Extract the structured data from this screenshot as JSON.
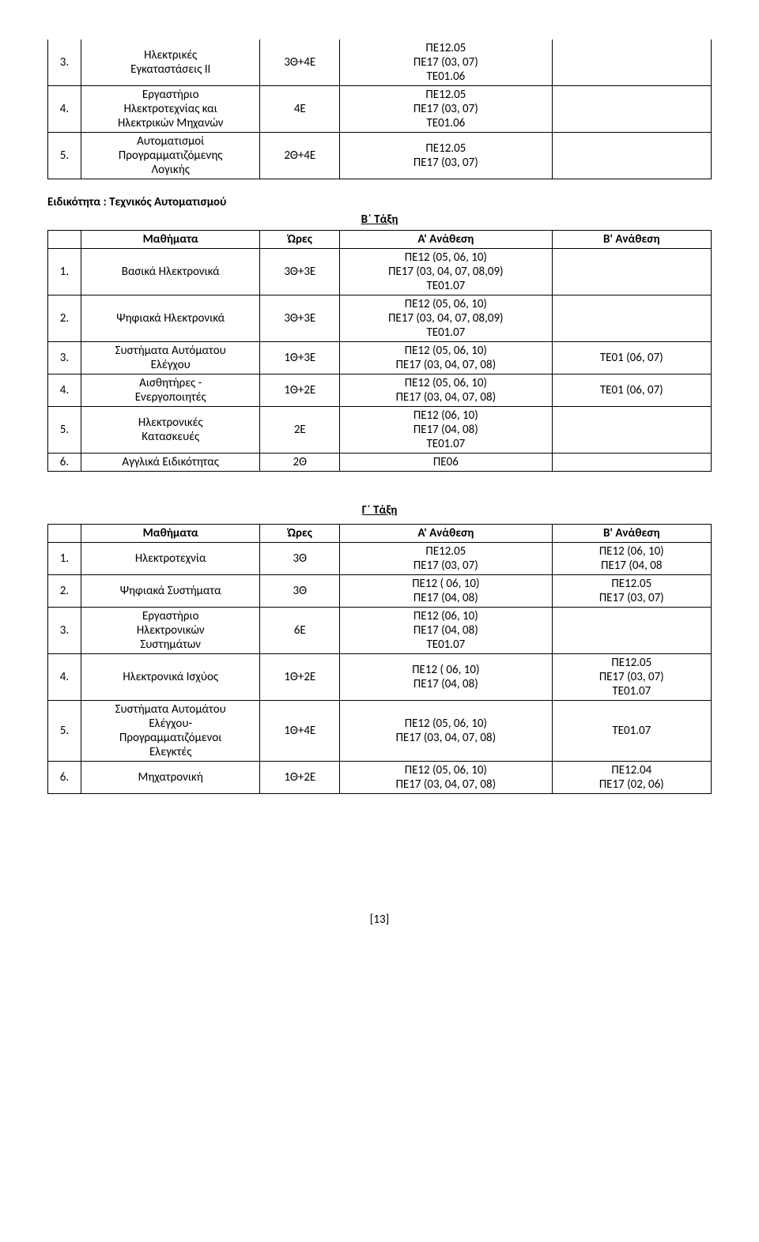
{
  "top_table": {
    "rows": [
      {
        "num": "3.",
        "name_l1": "Ηλεκτρικές",
        "name_l2": "Εγκαταστάσεις ΙΙ",
        "hours": "3Θ+4Ε",
        "a_l1": "ΠΕ12.05",
        "a_l2": "ΠΕ17 (03, 07)",
        "a_l3": "ΤΕ01.06",
        "b": ""
      },
      {
        "num": "4.",
        "name_l1": "Εργαστήριο",
        "name_l2": "Ηλεκτροτεχνίας και",
        "name_l3": "Ηλεκτρικών Μηχανών",
        "hours": "4Ε",
        "a_l1": "ΠΕ12.05",
        "a_l2": "ΠΕ17 (03, 07)",
        "a_l3": "ΤΕ01.06",
        "b": ""
      },
      {
        "num": "5.",
        "name_l1": "Αυτοματισμοί",
        "name_l2": "Προγραμματιζόμενης",
        "name_l3": "Λογικής",
        "hours": "2Θ+4Ε",
        "a_l1": "ΠΕ12.05",
        "a_l2": "ΠΕ17 (03, 07)",
        "b": ""
      }
    ]
  },
  "spec_title": "Ειδικότητα : Τεχνικός Αυτοματισμού",
  "class_b": "Β΄ Τάξη",
  "headers": {
    "math": "Μαθήματα",
    "hours": "Ώρες",
    "a": "Α' Ανάθεση",
    "b": "Β' Ανάθεση"
  },
  "table_b": {
    "rows": [
      {
        "num": "1.",
        "name": "Βασικά Ηλεκτρονικά",
        "hours": "3Θ+3Ε",
        "a_l1": "ΠΕ12 (05, 06, 10)",
        "a_l2": "ΠΕ17 (03, 04, 07, 08,09)",
        "a_l3": "ΤΕ01.07",
        "b": ""
      },
      {
        "num": "2.",
        "name": "Ψηφιακά Ηλεκτρονικά",
        "hours": "3Θ+3Ε",
        "a_l1": "ΠΕ12 (05, 06, 10)",
        "a_l2": "ΠΕ17 (03, 04, 07, 08,09)",
        "a_l3": "ΤΕ01.07",
        "b": ""
      },
      {
        "num": "3.",
        "name_l1": "Συστήματα Αυτόματου",
        "name_l2": "Ελέγχου",
        "hours": "1Θ+3Ε",
        "a_l1": "ΠΕ12 (05, 06, 10)",
        "a_l2": "ΠΕ17 (03, 04, 07, 08)",
        "b": "ΤΕ01 (06, 07)"
      },
      {
        "num": "4.",
        "name_l1": "Αισθητήρες -",
        "name_l2": "Ενεργοποιητές",
        "hours": "1Θ+2Ε",
        "a_l1": "ΠΕ12 (05, 06, 10)",
        "a_l2": "ΠΕ17 (03, 04, 07, 08)",
        "b": "ΤΕ01 (06, 07)"
      },
      {
        "num": "5.",
        "name_l1": "Ηλεκτρονικές",
        "name_l2": "Κατασκευές",
        "hours": "2Ε",
        "a_l1": "ΠΕ12 (06, 10)",
        "a_l2": "ΠΕ17 (04, 08)",
        "a_l3": "ΤΕ01.07",
        "b": ""
      },
      {
        "num": "6.",
        "name": "Αγγλικά Ειδικότητας",
        "hours": "2Θ",
        "a": "ΠΕ06",
        "b": ""
      }
    ]
  },
  "class_g": "Γ΄ Τάξη",
  "table_g": {
    "rows": [
      {
        "num": "1.",
        "name": "Ηλεκτροτεχνία",
        "hours": "3Θ",
        "a_l1": "ΠΕ12.05",
        "a_l2": "ΠΕ17 (03, 07)",
        "b_l1": "ΠΕ12 (06, 10)",
        "b_l2": "ΠΕ17 (04, 08"
      },
      {
        "num": "2.",
        "name": "Ψηφιακά Συστήματα",
        "hours": "3Θ",
        "a_l1": "ΠΕ12 ( 06, 10)",
        "a_l2": "ΠΕ17 (04, 08)",
        "b_l1": "ΠΕ12.05",
        "b_l2": "ΠΕ17 (03, 07)"
      },
      {
        "num": "3.",
        "name_l1": "Εργαστήριο",
        "name_l2": "Ηλεκτρονικών",
        "name_l3": "Συστημάτων",
        "hours": "6Ε",
        "a_l1": "ΠΕ12 (06, 10)",
        "a_l2": "ΠΕ17 (04, 08)",
        "a_l3": "ΤΕ01.07",
        "b": ""
      },
      {
        "num": "4.",
        "name": "Ηλεκτρονικά Ισχύος",
        "hours": "1Θ+2Ε",
        "a_l1": "ΠΕ12 ( 06, 10)",
        "a_l2": "ΠΕ17 (04, 08)",
        "b_l1": "ΠΕ12.05",
        "b_l2": "ΠΕ17 (03, 07)",
        "b_l3": "ΤΕ01.07"
      },
      {
        "num": "5.",
        "name_l1": "Συστήματα Αυτομάτου",
        "name_l2": "Ελέγχου-",
        "name_l3": "Προγραμματιζόμενοι",
        "name_l4": "Ελεγκτές",
        "hours": "1Θ+4Ε",
        "a_l1": "ΠΕ12 (05, 06, 10)",
        "a_l2": "ΠΕ17 (03, 04, 07, 08)",
        "b": "ΤΕ01.07"
      },
      {
        "num": "6.",
        "name": "Μηχατρονική",
        "hours": "1Θ+2Ε",
        "a_l1": "ΠΕ12 (05, 06, 10)",
        "a_l2": "ΠΕ17 (03, 04, 07, 08)",
        "b_l1": "ΠΕ12.04",
        "b_l2": "ΠΕ17 (02, 06)"
      }
    ]
  },
  "footer": "[13]"
}
